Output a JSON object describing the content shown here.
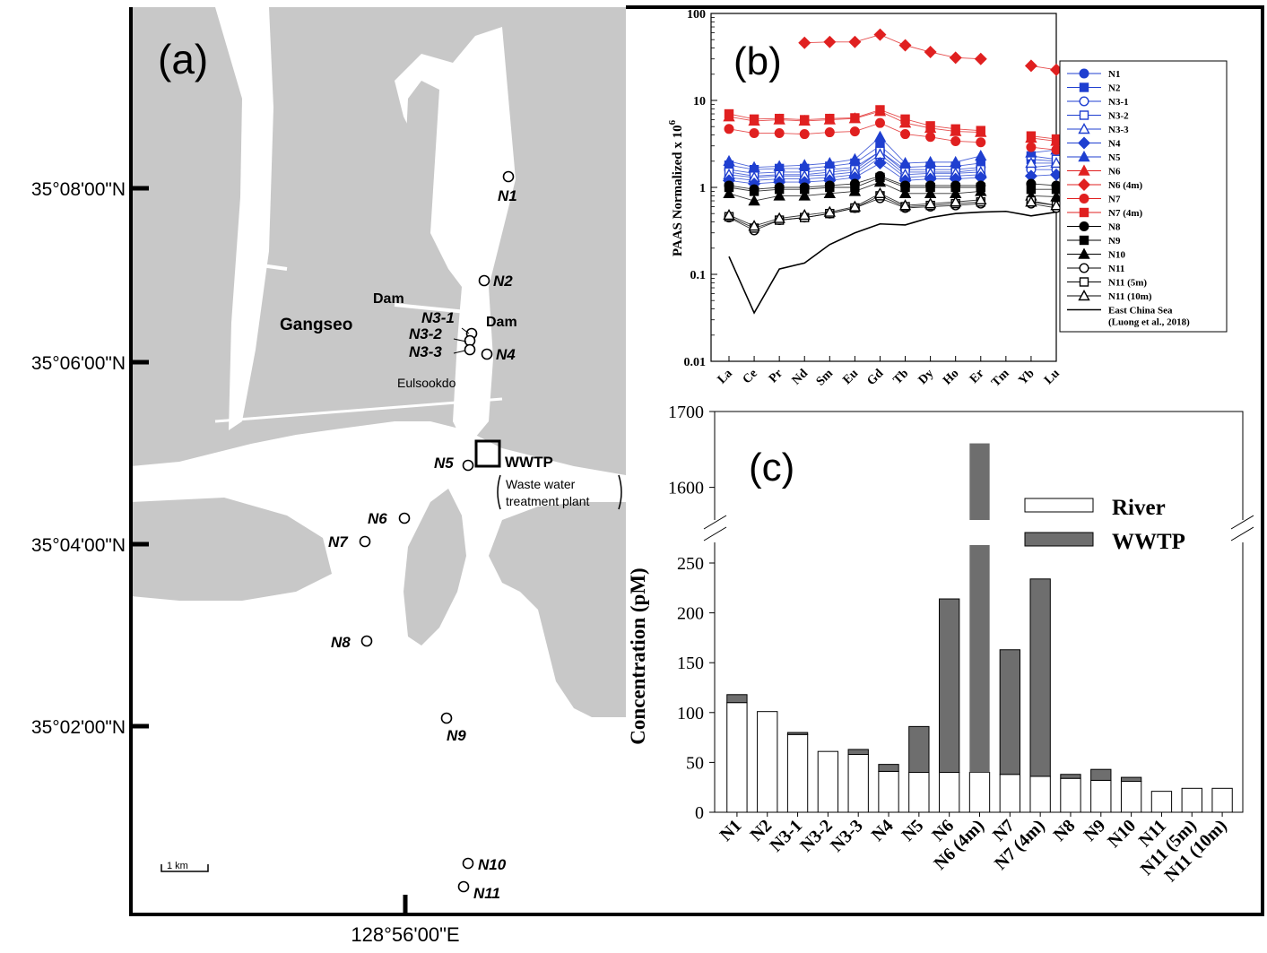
{
  "map": {
    "panel_label": "(a)",
    "lat_labels": [
      "35°08'00\"N",
      "35°06'00\"N",
      "35°04'00\"N",
      "35°02'00\"N"
    ],
    "lon_label": "128°56'00\"E",
    "scale_label": "1 km",
    "place_gangseo": "Gangseo",
    "place_dam1": "Dam",
    "place_dam2": "Dam",
    "place_eulsookdo": "Eulsookdo",
    "wwtp_label": "WWTP",
    "wwtp_desc1": "Waste water",
    "wwtp_desc2": "treatment plant",
    "stations": [
      "N1",
      "N2",
      "N3-1",
      "N3-2",
      "N3-3",
      "N4",
      "N5",
      "N6",
      "N7",
      "N8",
      "N9",
      "N10",
      "N11"
    ]
  },
  "chart_data": [
    {
      "type": "line",
      "panel_label": "(b)",
      "ylabel": "PAAS Normalized x 10",
      "ylabel_sup": "6",
      "yscale": "log",
      "ylim": [
        0.01,
        100
      ],
      "yticks": [
        "0.01",
        "0.1",
        "1",
        "10",
        "100"
      ],
      "categories": [
        "La",
        "Ce",
        "Pr",
        "Nd",
        "Sm",
        "Eu",
        "Gd",
        "Tb",
        "Dy",
        "Ho",
        "Er",
        "Tm",
        "Yb",
        "Lu"
      ],
      "legend_position": "right",
      "series": [
        {
          "name": "N1",
          "color": "#1f3fd0",
          "marker": "circle",
          "fill": true,
          "values": [
            1.6,
            1.45,
            1.5,
            1.5,
            1.6,
            1.7,
            2.6,
            1.6,
            1.6,
            1.6,
            1.7,
            null,
            1.7,
            1.8
          ]
        },
        {
          "name": "N2",
          "color": "#1f3fd0",
          "marker": "square",
          "fill": true,
          "values": [
            1.8,
            1.6,
            1.65,
            1.65,
            1.75,
            1.9,
            3.0,
            1.7,
            1.75,
            1.75,
            1.9,
            null,
            2.1,
            2.0
          ]
        },
        {
          "name": "N3-1",
          "color": "#1f3fd0",
          "marker": "circle",
          "fill": false,
          "values": [
            1.3,
            1.2,
            1.25,
            1.25,
            1.3,
            1.4,
            2.2,
            1.3,
            1.35,
            1.35,
            1.4,
            null,
            1.6,
            1.6
          ]
        },
        {
          "name": "N3-2",
          "color": "#1f3fd0",
          "marker": "square",
          "fill": false,
          "values": [
            1.5,
            1.35,
            1.4,
            1.4,
            1.5,
            1.6,
            2.6,
            1.5,
            1.5,
            1.5,
            1.6,
            null,
            2.3,
            2.1
          ]
        },
        {
          "name": "N3-3",
          "color": "#1f3fd0",
          "marker": "triangle",
          "fill": false,
          "values": [
            1.4,
            1.3,
            1.35,
            1.35,
            1.4,
            1.5,
            2.4,
            1.4,
            1.45,
            1.45,
            1.5,
            null,
            1.9,
            1.9
          ]
        },
        {
          "name": "N4",
          "color": "#1f3fd0",
          "marker": "diamond",
          "fill": true,
          "values": [
            1.2,
            1.1,
            1.15,
            1.15,
            1.2,
            1.3,
            1.9,
            1.2,
            1.25,
            1.25,
            1.3,
            null,
            1.35,
            1.4
          ]
        },
        {
          "name": "N5",
          "color": "#1f3fd0",
          "marker": "triangle",
          "fill": true,
          "values": [
            2.0,
            1.7,
            1.75,
            1.8,
            1.9,
            2.1,
            3.8,
            1.9,
            1.95,
            1.95,
            2.3,
            null,
            2.5,
            2.7
          ]
        },
        {
          "name": "N6",
          "color": "#e02020",
          "marker": "triangle",
          "fill": true,
          "values": [
            6.5,
            5.8,
            6.0,
            5.8,
            6.0,
            6.2,
            7.5,
            5.5,
            4.8,
            4.4,
            4.3,
            null,
            3.7,
            3.4
          ]
        },
        {
          "name": "N6 (4m)",
          "color": "#e02020",
          "marker": "diamond",
          "fill": true,
          "values": [
            null,
            null,
            null,
            46,
            47,
            47,
            57,
            43,
            36,
            31,
            30,
            null,
            25,
            22.5
          ]
        },
        {
          "name": "N7",
          "color": "#e02020",
          "marker": "circle",
          "fill": true,
          "values": [
            4.7,
            4.2,
            4.2,
            4.1,
            4.3,
            4.4,
            5.5,
            4.1,
            3.8,
            3.4,
            3.3,
            null,
            2.9,
            2.7
          ]
        },
        {
          "name": "N7 (4m)",
          "color": "#e02020",
          "marker": "square",
          "fill": true,
          "values": [
            7.0,
            6.1,
            6.2,
            6.0,
            6.2,
            6.3,
            7.8,
            6.1,
            5.1,
            4.7,
            4.5,
            null,
            3.9,
            3.6
          ]
        },
        {
          "name": "N8",
          "color": "#000000",
          "marker": "circle",
          "fill": true,
          "values": [
            1.05,
            0.95,
            1.0,
            1.0,
            1.05,
            1.1,
            1.35,
            1.05,
            1.05,
            1.05,
            1.05,
            null,
            1.1,
            1.05
          ]
        },
        {
          "name": "N9",
          "color": "#000000",
          "marker": "square",
          "fill": true,
          "values": [
            1.0,
            0.9,
            0.95,
            0.95,
            1.0,
            1.0,
            1.3,
            1.0,
            1.0,
            1.0,
            1.0,
            null,
            0.95,
            0.95
          ]
        },
        {
          "name": "N10",
          "color": "#000000",
          "marker": "triangle",
          "fill": true,
          "values": [
            0.85,
            0.7,
            0.8,
            0.8,
            0.85,
            0.9,
            1.15,
            0.85,
            0.85,
            0.85,
            0.9,
            null,
            0.8,
            0.78
          ]
        },
        {
          "name": "N11",
          "color": "#000000",
          "marker": "circle",
          "fill": false,
          "values": [
            0.45,
            0.32,
            0.42,
            0.45,
            0.5,
            0.58,
            0.75,
            0.58,
            0.6,
            0.62,
            0.65,
            null,
            0.65,
            0.58
          ]
        },
        {
          "name": "N11 (5m)",
          "color": "#000000",
          "marker": "square",
          "fill": false,
          "values": [
            0.46,
            0.34,
            0.42,
            0.45,
            0.5,
            0.58,
            0.8,
            0.6,
            0.62,
            0.65,
            0.68,
            null,
            0.7,
            0.62
          ]
        },
        {
          "name": "N11 (10m)",
          "color": "#000000",
          "marker": "triangle",
          "fill": false,
          "values": [
            0.48,
            0.36,
            0.44,
            0.48,
            0.52,
            0.6,
            0.85,
            0.62,
            0.65,
            0.68,
            0.72,
            null,
            0.68,
            0.62
          ]
        },
        {
          "name": "East China Sea\n(Luong et al., 2018)",
          "legend_line1": "East China Sea",
          "legend_line2": "(Luong et al., 2018)",
          "color": "#000000",
          "marker": "none",
          "fill": false,
          "values": [
            0.16,
            0.036,
            0.115,
            0.135,
            0.22,
            0.3,
            0.38,
            0.37,
            0.45,
            0.5,
            0.52,
            0.53,
            0.47,
            0.52
          ]
        }
      ]
    },
    {
      "type": "bar",
      "stacked": true,
      "panel_label": "(c)",
      "ylabel": "Concentration (pM)",
      "broken_axis": true,
      "ylim_lower": [
        0,
        250
      ],
      "ylim_upper": [
        1560,
        1700
      ],
      "yticks_lower": [
        "0",
        "50",
        "100",
        "150",
        "200",
        "250"
      ],
      "yticks_upper": [
        "1600",
        "1700"
      ],
      "categories": [
        "N1",
        "N2",
        "N3-1",
        "N3-2",
        "N3-3",
        "N4",
        "N5",
        "N6",
        "N6 (4m)",
        "N7",
        "N7 (4m)",
        "N8",
        "N9",
        "N10",
        "N11",
        "N11 (5m)",
        "N11 (10m)"
      ],
      "series": [
        {
          "name": "River",
          "color": "#ffffff",
          "values": [
            110,
            101,
            78,
            61,
            58,
            41,
            40,
            40,
            40,
            38,
            36,
            34,
            32,
            31,
            21,
            24,
            24
          ]
        },
        {
          "name": "WWTP",
          "color": "#6e6e6e",
          "values": [
            8,
            0,
            2,
            0,
            5,
            7,
            46,
            174,
            1618,
            125,
            198,
            4,
            11,
            4,
            0,
            0,
            0
          ]
        }
      ],
      "legend_position": "top-right"
    }
  ]
}
